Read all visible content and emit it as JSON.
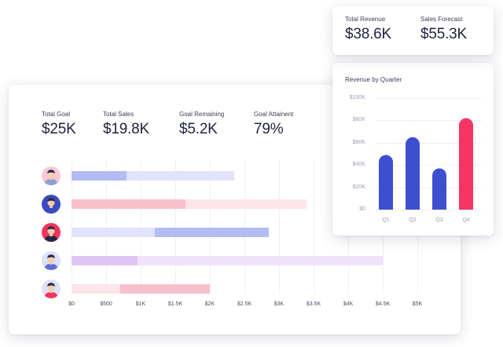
{
  "goal_panel": {
    "stats": [
      {
        "label": "Total Goal",
        "value": "$25K"
      },
      {
        "label": "Total Sales",
        "value": "$19.8K"
      },
      {
        "label": "Goal Remaining",
        "value": "$5.2K"
      },
      {
        "label": "Goal Attainent",
        "value": "79%"
      }
    ],
    "axis_ticks": [
      "$0",
      "$500",
      "$1K",
      "$1.5K",
      "$2K",
      "$2.5K",
      "$3K",
      "$3.5K",
      "$4K",
      "$4.5K",
      "$5K"
    ],
    "rows": [
      {
        "avatar": "avatar-person-1",
        "sales": 800,
        "goal": 2350,
        "track": "#dfe3fb",
        "fill": "#b3bbf3",
        "bg": "#f7c9d4",
        "shirt": "#8fa0d8"
      },
      {
        "avatar": "avatar-person-2",
        "sales": 1650,
        "goal": 3400,
        "track": "#fde5ea",
        "fill": "#f8bfcc",
        "bg": "#3b4cc0",
        "shirt": "#3b4cc0"
      },
      {
        "avatar": "avatar-person-3",
        "sales": 2850,
        "goal": 1200,
        "track": "#dfe3fb",
        "fill": "#b3bbf3",
        "bg": "#f0365c",
        "shirt": "#24264a"
      },
      {
        "avatar": "avatar-person-4",
        "sales": 950,
        "goal": 4500,
        "track": "#efe3fb",
        "fill": "#dfc6f5",
        "bg": "#dce2fb",
        "shirt": "#5d6fd8"
      },
      {
        "avatar": "avatar-person-5",
        "sales": 2000,
        "goal": 700,
        "track": "#fde5ea",
        "fill": "#f8bfcc",
        "bg": "#dde2fb",
        "shirt": "#f0365c"
      }
    ]
  },
  "kpi": [
    {
      "label": "Total Revenue",
      "value": "$38.6K"
    },
    {
      "label": "Sales Forecast",
      "value": "$55.3K"
    }
  ],
  "quarter_chart": {
    "title": "Revenue by Quarter",
    "bar_color": "#3d4fd0",
    "highlight_color": "#f53561"
  },
  "chart_data": {
    "type": "bar",
    "title": "Revenue by Quarter",
    "categories": [
      "Q1",
      "Q2",
      "Q3",
      "Q4"
    ],
    "values": [
      49000,
      65000,
      37000,
      82000
    ],
    "ylim": [
      0,
      100000
    ],
    "yticks": [
      "$0",
      "$20K",
      "$40K",
      "$60K",
      "$80K",
      "$100K"
    ],
    "highlight_index": 3,
    "grid": true
  }
}
